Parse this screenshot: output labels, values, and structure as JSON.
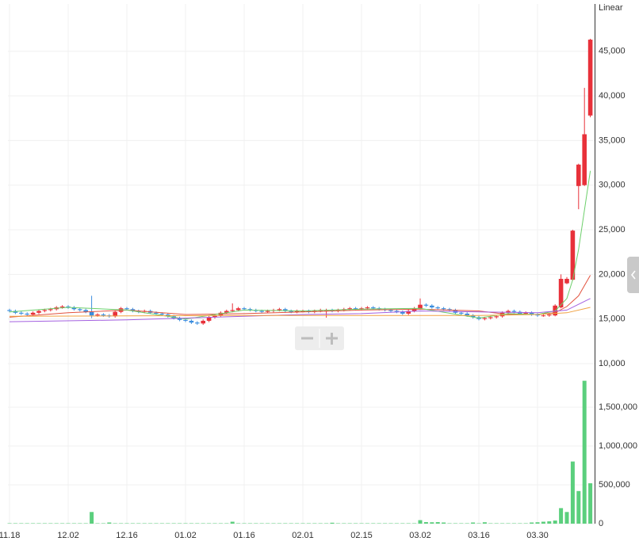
{
  "chart_data": {
    "type": "candlestick",
    "scale_label": "Linear",
    "categories": [
      "11.18",
      null,
      null,
      null,
      null,
      null,
      null,
      null,
      null,
      null,
      "12.02",
      null,
      null,
      null,
      null,
      null,
      null,
      null,
      null,
      null,
      "12.16",
      null,
      null,
      null,
      null,
      null,
      null,
      null,
      null,
      null,
      "01.02",
      null,
      null,
      null,
      null,
      null,
      null,
      null,
      null,
      null,
      "01.16",
      null,
      null,
      null,
      null,
      null,
      null,
      null,
      null,
      null,
      "02.01",
      null,
      null,
      null,
      null,
      null,
      null,
      null,
      null,
      null,
      "02.15",
      null,
      null,
      null,
      null,
      null,
      null,
      null,
      null,
      null,
      "03.02",
      null,
      null,
      null,
      null,
      null,
      null,
      null,
      null,
      null,
      "03.16",
      null,
      null,
      null,
      null,
      null,
      null,
      null,
      null,
      null,
      "03.30",
      null,
      null,
      null,
      null,
      null,
      null,
      null,
      null,
      null
    ],
    "open": [
      16000,
      15900,
      15700,
      15600,
      15500,
      15700,
      15900,
      16000,
      16100,
      16300,
      16400,
      16300,
      16100,
      16000,
      15800,
      15400,
      15500,
      15400,
      15300,
      15800,
      16200,
      16100,
      15900,
      15800,
      15900,
      15700,
      15600,
      15500,
      15300,
      15100,
      14900,
      14800,
      14600,
      14500,
      14800,
      15200,
      15400,
      15700,
      15900,
      16000,
      16200,
      16100,
      16000,
      15900,
      15800,
      15900,
      16000,
      16100,
      15900,
      15800,
      15900,
      15900,
      15800,
      15900,
      16000,
      16000,
      15900,
      16000,
      16100,
      16200,
      16100,
      16200,
      16300,
      16200,
      16100,
      16000,
      15900,
      15800,
      15600,
      15900,
      16200,
      16600,
      16500,
      16300,
      16200,
      16100,
      16000,
      15700,
      15600,
      15400,
      15200,
      15000,
      15100,
      15200,
      15300,
      15700,
      15900,
      15800,
      15600,
      15700,
      15500,
      15400,
      15400,
      15400,
      16300,
      19000,
      19400,
      29900,
      30000,
      37800
    ],
    "high": [
      16150,
      16050,
      15850,
      15750,
      15850,
      16050,
      16150,
      16250,
      16450,
      16550,
      16550,
      16450,
      16250,
      16150,
      17600,
      15650,
      15650,
      15550,
      15950,
      16350,
      16350,
      16250,
      16050,
      16050,
      16050,
      15850,
      15750,
      15650,
      15450,
      15250,
      15050,
      14950,
      14750,
      14950,
      15350,
      15550,
      15850,
      16050,
      16750,
      16350,
      16350,
      16250,
      16150,
      16050,
      16050,
      16150,
      16250,
      16250,
      16050,
      16050,
      16050,
      16050,
      16050,
      16150,
      16150,
      16150,
      16150,
      16250,
      16350,
      16350,
      16350,
      16450,
      16450,
      16350,
      16250,
      16150,
      16050,
      15950,
      16050,
      16350,
      17300,
      16750,
      16650,
      16450,
      16350,
      16250,
      16150,
      15850,
      15750,
      15550,
      15350,
      15250,
      15350,
      15450,
      15850,
      16050,
      16050,
      15950,
      15850,
      15850,
      15650,
      15550,
      15650,
      16650,
      20000,
      19700,
      25000,
      32400,
      40900,
      46400
    ],
    "low": [
      15750,
      15550,
      15450,
      15350,
      15350,
      15550,
      15750,
      15850,
      15950,
      16150,
      16150,
      15950,
      15850,
      15650,
      15100,
      15250,
      15250,
      15150,
      15150,
      15650,
      15950,
      15750,
      15650,
      15650,
      15550,
      15450,
      15350,
      15150,
      14950,
      14750,
      14650,
      14450,
      14350,
      14350,
      14650,
      15050,
      15250,
      15550,
      15750,
      15850,
      15950,
      15850,
      15750,
      15650,
      15650,
      15750,
      15850,
      15750,
      15650,
      15650,
      15750,
      15650,
      15650,
      15750,
      15150,
      15750,
      15750,
      15850,
      15950,
      15950,
      15950,
      16050,
      16050,
      15950,
      15850,
      15750,
      15650,
      15450,
      15450,
      15750,
      16050,
      16350,
      16150,
      16050,
      15950,
      15850,
      15550,
      15450,
      15250,
      15050,
      14850,
      14850,
      14950,
      15050,
      15150,
      15550,
      15650,
      15450,
      15450,
      15350,
      15250,
      15250,
      15250,
      15300,
      16200,
      18900,
      19300,
      27300,
      29900,
      37600
    ],
    "close": [
      15900,
      15700,
      15600,
      15500,
      15700,
      15900,
      16000,
      16100,
      16300,
      16400,
      16300,
      16100,
      16000,
      15800,
      15400,
      15500,
      15400,
      15300,
      15800,
      16200,
      16100,
      15900,
      15800,
      15900,
      15700,
      15600,
      15500,
      15300,
      15100,
      14900,
      14800,
      14600,
      14500,
      14800,
      15200,
      15400,
      15700,
      15900,
      16000,
      16200,
      16100,
      16000,
      15900,
      15800,
      15900,
      16000,
      16100,
      15900,
      15800,
      15900,
      15900,
      15800,
      15900,
      16000,
      16000,
      15900,
      16000,
      16100,
      16200,
      16100,
      16200,
      16300,
      16200,
      16100,
      16000,
      15900,
      15800,
      15600,
      15900,
      16200,
      16600,
      16500,
      16300,
      16200,
      16100,
      16000,
      15700,
      15600,
      15400,
      15200,
      15000,
      15100,
      15200,
      15300,
      15700,
      15900,
      15800,
      15600,
      15700,
      15500,
      15400,
      15400,
      15500,
      16500,
      19500,
      19500,
      24900,
      32300,
      35700,
      46300
    ],
    "up_color": "#e8313a",
    "down_color": "#3a8dde",
    "ylim": [
      10000,
      50300
    ],
    "yticks": [
      {
        "value": 10000,
        "label": "10,000"
      },
      {
        "value": 15000,
        "label": "15,000"
      },
      {
        "value": 20000,
        "label": "20,000"
      },
      {
        "value": 25000,
        "label": "25,000"
      },
      {
        "value": 30000,
        "label": "30,000"
      },
      {
        "value": 35000,
        "label": "35,000"
      },
      {
        "value": 40000,
        "label": "40,000"
      },
      {
        "value": 45000,
        "label": "45,000"
      }
    ],
    "moving_averages": [
      {
        "color": "#e2533f",
        "x": [
          0,
          10,
          20,
          30,
          40,
          50,
          60,
          70,
          80,
          85,
          90,
          93,
          95,
          97,
          99
        ],
        "values": [
          15200,
          15700,
          16000,
          15500,
          15600,
          15800,
          16000,
          16100,
          15900,
          15500,
          15500,
          15700,
          16400,
          17600,
          19900
        ]
      },
      {
        "color": "#6ccf6a",
        "x": [
          0,
          10,
          20,
          30,
          40,
          50,
          60,
          70,
          80,
          85,
          90,
          93,
          95,
          96,
          97,
          98,
          99
        ],
        "values": [
          15800,
          16300,
          16000,
          15000,
          16000,
          15900,
          16100,
          16200,
          15100,
          15600,
          15500,
          15900,
          17300,
          19400,
          22800,
          27200,
          31600
        ]
      },
      {
        "color": "#a461e0",
        "x": [
          0,
          20,
          30,
          40,
          50,
          60,
          70,
          80,
          90,
          95,
          99
        ],
        "values": [
          14700,
          14900,
          15100,
          15300,
          15500,
          15600,
          15900,
          15800,
          15700,
          16000,
          17300
        ]
      },
      {
        "color": "#f0a040",
        "x": [
          0,
          40,
          80,
          90,
          95,
          99
        ],
        "values": [
          15300,
          15400,
          15400,
          15500,
          15700,
          16300
        ]
      }
    ],
    "volume": {
      "color": "#5bcf7d",
      "values": [
        5000,
        5000,
        5000,
        5000,
        5000,
        5000,
        5000,
        5000,
        5000,
        5000,
        5000,
        5000,
        5000,
        5000,
        150000,
        5000,
        5000,
        15000,
        5000,
        5000,
        5000,
        5000,
        5000,
        5000,
        5000,
        5000,
        5000,
        5000,
        5000,
        5000,
        5000,
        5000,
        5000,
        5000,
        5000,
        5000,
        5000,
        5000,
        25000,
        5000,
        5000,
        5000,
        5000,
        5000,
        5000,
        5000,
        5000,
        5000,
        5000,
        5000,
        5000,
        5000,
        5000,
        5000,
        5000,
        12000,
        5000,
        5000,
        5000,
        5000,
        5000,
        5000,
        5000,
        5000,
        5000,
        5000,
        5000,
        5000,
        5000,
        5000,
        45000,
        20000,
        18000,
        20000,
        15000,
        5000,
        5000,
        5000,
        5000,
        15000,
        5000,
        18000,
        5000,
        5000,
        5000,
        5000,
        5000,
        5000,
        5000,
        15000,
        18000,
        25000,
        30000,
        40000,
        200000,
        150000,
        800000,
        420000,
        1840000,
        520000
      ],
      "ylim": [
        0,
        2030000
      ],
      "yticks": [
        0,
        {
          "value": 500000,
          "label": "500,000"
        },
        {
          "value": 1000000,
          "label": "1,000,000"
        },
        {
          "value": 1500000,
          "label": "1,500,000"
        }
      ]
    }
  }
}
